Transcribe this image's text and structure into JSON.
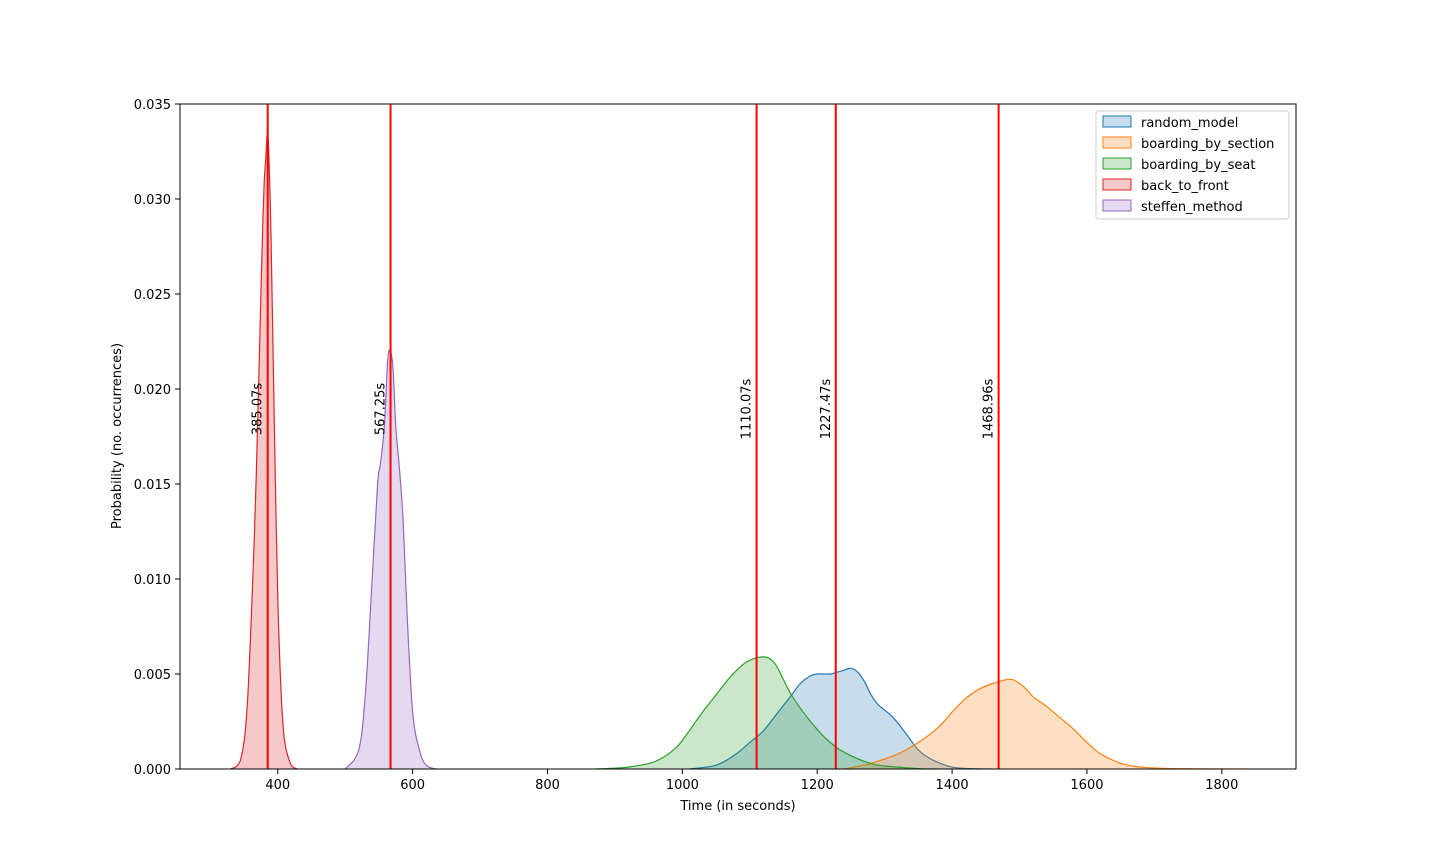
{
  "chart_data": {
    "type": "area",
    "xlabel": "Time (in seconds)",
    "ylabel": "Probability (no. occurrences)",
    "xlim": [
      255,
      1910
    ],
    "ylim": [
      0,
      0.035
    ],
    "x_ticks": [
      400,
      600,
      800,
      1000,
      1200,
      1400,
      1600,
      1800
    ],
    "x_tick_labels": [
      "400",
      "600",
      "800",
      "1000",
      "1200",
      "1400",
      "1600",
      "1800"
    ],
    "y_ticks": [
      0.0,
      0.005,
      0.01,
      0.015,
      0.02,
      0.025,
      0.03,
      0.035
    ],
    "y_tick_labels": [
      "0.000",
      "0.005",
      "0.010",
      "0.015",
      "0.020",
      "0.025",
      "0.030",
      "0.035"
    ],
    "grid": false,
    "legend_position": "top-right",
    "series": [
      {
        "name": "random_model",
        "color": "#1f77b4",
        "x": [
          1010,
          1050,
          1080,
          1100,
          1120,
          1140,
          1160,
          1175,
          1190,
          1200,
          1210,
          1220,
          1230,
          1240,
          1250,
          1260,
          1270,
          1280,
          1290,
          1300,
          1310,
          1320,
          1335,
          1350,
          1370,
          1400,
          1430,
          1460
        ],
        "y": [
          0.0,
          0.0002,
          0.0008,
          0.0014,
          0.002,
          0.0029,
          0.0038,
          0.0045,
          0.0049,
          0.005,
          0.005,
          0.005,
          0.0051,
          0.0052,
          0.0053,
          0.0051,
          0.0046,
          0.0039,
          0.0034,
          0.0031,
          0.0028,
          0.0024,
          0.0017,
          0.001,
          0.0005,
          0.0001,
          2e-05,
          0.0
        ]
      },
      {
        "name": "boarding_by_section",
        "color": "#ff7f0e",
        "x": [
          1240,
          1280,
          1320,
          1350,
          1380,
          1400,
          1420,
          1440,
          1460,
          1480,
          1490,
          1500,
          1510,
          1520,
          1540,
          1560,
          1580,
          1600,
          1620,
          1650,
          1680,
          1720,
          1760,
          1800,
          1840
        ],
        "y": [
          0.0,
          0.0003,
          0.0008,
          0.0014,
          0.0022,
          0.003,
          0.0037,
          0.0042,
          0.0045,
          0.0047,
          0.0047,
          0.0045,
          0.0042,
          0.0038,
          0.0033,
          0.0027,
          0.0021,
          0.0014,
          0.0008,
          0.0003,
          0.0001,
          3e-05,
          1e-05,
          0.0,
          0.0
        ]
      },
      {
        "name": "boarding_by_seat",
        "color": "#2ca02c",
        "x": [
          870,
          920,
          960,
          990,
          1010,
          1030,
          1050,
          1070,
          1090,
          1105,
          1120,
          1130,
          1140,
          1150,
          1160,
          1175,
          1190,
          1210,
          1230,
          1250,
          1270,
          1290,
          1320,
          1350,
          1380
        ],
        "y": [
          0.0,
          0.0001,
          0.0004,
          0.0011,
          0.002,
          0.003,
          0.0039,
          0.0048,
          0.0055,
          0.0058,
          0.0059,
          0.0058,
          0.0054,
          0.0047,
          0.004,
          0.0032,
          0.0025,
          0.0017,
          0.0011,
          0.0007,
          0.0004,
          0.0002,
          0.0001,
          2e-05,
          0.0
        ]
      },
      {
        "name": "back_to_front",
        "color": "#d62728",
        "x": [
          330,
          345,
          355,
          365,
          370,
          375,
          378,
          380,
          382,
          384,
          385,
          386,
          388,
          390,
          393,
          396,
          400,
          405,
          410,
          420,
          430
        ],
        "y": [
          0.0,
          0.0005,
          0.0035,
          0.012,
          0.018,
          0.025,
          0.029,
          0.031,
          0.032,
          0.0333,
          0.0333,
          0.033,
          0.031,
          0.028,
          0.022,
          0.016,
          0.009,
          0.004,
          0.0015,
          0.0002,
          0.0
        ]
      },
      {
        "name": "steffen_method",
        "color": "#9467bd",
        "x": [
          500,
          520,
          530,
          540,
          548,
          552,
          558,
          563,
          567,
          571,
          575,
          580,
          586,
          592,
          600,
          610,
          620,
          635
        ],
        "y": [
          0.0,
          0.001,
          0.004,
          0.01,
          0.015,
          0.016,
          0.018,
          0.0215,
          0.022,
          0.021,
          0.018,
          0.016,
          0.013,
          0.008,
          0.003,
          0.001,
          0.0002,
          0.0
        ]
      }
    ],
    "mean_lines": [
      {
        "x": 385.07,
        "label": "385.07s"
      },
      {
        "x": 567.25,
        "label": "567.25s"
      },
      {
        "x": 1110.07,
        "label": "1110.07s"
      },
      {
        "x": 1227.47,
        "label": "1227.47s"
      },
      {
        "x": 1468.96,
        "label": "1468.96s"
      }
    ],
    "mean_line_color": "#ff0000"
  }
}
